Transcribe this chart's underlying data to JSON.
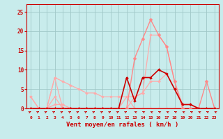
{
  "xlabel": "Vent moyen/en rafales ( km/h )",
  "bg_color": "#c8ecec",
  "grid_color": "#a0c8c8",
  "x_ticks": [
    0,
    1,
    2,
    3,
    4,
    5,
    6,
    7,
    8,
    9,
    10,
    11,
    12,
    13,
    14,
    15,
    16,
    17,
    18,
    19,
    20,
    21,
    22,
    23
  ],
  "y_ticks": [
    0,
    5,
    10,
    15,
    20,
    25
  ],
  "xlim": [
    -0.5,
    23.5
  ],
  "ylim": [
    0,
    27
  ],
  "series": [
    {
      "x": [
        0,
        1,
        2,
        3,
        4,
        5,
        6,
        7,
        8,
        9,
        10,
        11,
        12,
        13,
        14,
        15,
        16,
        17,
        18,
        19,
        20,
        21,
        22,
        23
      ],
      "y": [
        3,
        0,
        0,
        8,
        7,
        6,
        5,
        4,
        4,
        3,
        3,
        3,
        3,
        3,
        4,
        19,
        19,
        16,
        7,
        1,
        1,
        0,
        0,
        0
      ],
      "color": "#ffaaaa",
      "linewidth": 0.9,
      "markersize": 2.0,
      "zorder": 2
    },
    {
      "x": [
        0,
        1,
        2,
        3,
        4,
        5,
        6,
        7,
        8,
        9,
        10,
        11,
        12,
        13,
        14,
        15,
        16,
        17,
        18,
        19,
        20,
        21,
        22,
        23
      ],
      "y": [
        0,
        0,
        0,
        3,
        0,
        0,
        0,
        0,
        0,
        0,
        0,
        0,
        3,
        0,
        0,
        0,
        0,
        0,
        0,
        0,
        0,
        0,
        0,
        0
      ],
      "color": "#ffaaaa",
      "linewidth": 0.9,
      "markersize": 2.0,
      "zorder": 2
    },
    {
      "x": [
        0,
        1,
        2,
        3,
        4,
        5,
        6,
        7,
        8,
        9,
        10,
        11,
        12,
        13,
        14,
        15,
        16,
        17,
        18,
        19,
        20,
        21,
        22,
        23
      ],
      "y": [
        3,
        0,
        0,
        8,
        0,
        0,
        0,
        0,
        0,
        0,
        0,
        0,
        0,
        0,
        0,
        0,
        0,
        0,
        0,
        0,
        0,
        0,
        0,
        0
      ],
      "color": "#ffaaaa",
      "linewidth": 0.9,
      "markersize": 2.0,
      "zorder": 2
    },
    {
      "x": [
        0,
        1,
        2,
        3,
        4,
        5,
        6,
        7,
        8,
        9,
        10,
        11,
        12,
        13,
        14,
        15,
        16,
        17,
        18,
        19,
        20,
        21,
        22,
        23
      ],
      "y": [
        0,
        0,
        0,
        1,
        1,
        0,
        0,
        0,
        0,
        0,
        0,
        0,
        0,
        3,
        4,
        7,
        7,
        9,
        5,
        1,
        1,
        0,
        0,
        0
      ],
      "color": "#ffaaaa",
      "linewidth": 0.9,
      "markersize": 2.0,
      "zorder": 2
    },
    {
      "x": [
        0,
        1,
        2,
        3,
        4,
        5,
        6,
        7,
        8,
        9,
        10,
        11,
        12,
        13,
        14,
        15,
        16,
        17,
        18,
        19,
        20,
        21,
        22,
        23
      ],
      "y": [
        0,
        0,
        0,
        0,
        0,
        0,
        0,
        0,
        0,
        0,
        0,
        0,
        0,
        13,
        18,
        23,
        19,
        16,
        7,
        0,
        0,
        0,
        7,
        0
      ],
      "color": "#ff8888",
      "linewidth": 1.0,
      "markersize": 2.5,
      "zorder": 3
    },
    {
      "x": [
        0,
        1,
        2,
        3,
        4,
        5,
        6,
        7,
        8,
        9,
        10,
        11,
        12,
        13,
        14,
        15,
        16,
        17,
        18,
        19,
        20,
        21,
        22,
        23
      ],
      "y": [
        0,
        0,
        0,
        0,
        0,
        0,
        0,
        0,
        0,
        0,
        0,
        0,
        8,
        2,
        8,
        8,
        10,
        9,
        5,
        1,
        1,
        0,
        0,
        0
      ],
      "color": "#cc0000",
      "linewidth": 1.2,
      "markersize": 2.0,
      "zorder": 4
    }
  ],
  "arrow_angles_deg": [
    45,
    45,
    45,
    45,
    45,
    45,
    45,
    45,
    45,
    45,
    45,
    45,
    45,
    315,
    315,
    315,
    315,
    315,
    315,
    315,
    315,
    315,
    315,
    315
  ]
}
